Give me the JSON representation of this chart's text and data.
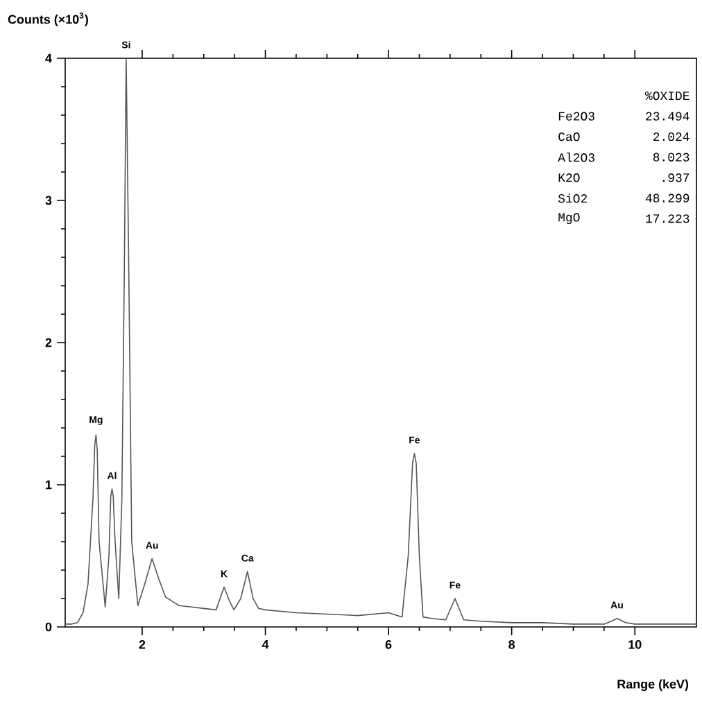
{
  "chart_data": {
    "type": "line",
    "ylabel": "Counts (×10$^{3}$)",
    "xlabel": "Range (keV)",
    "x": [
      0.75,
      0.85,
      0.95,
      1.04,
      1.12,
      1.2,
      1.23,
      1.25,
      1.27,
      1.3,
      1.4,
      1.46,
      1.49,
      1.51,
      1.53,
      1.56,
      1.62,
      1.67,
      1.71,
      1.74,
      1.78,
      1.83,
      1.93,
      2.04,
      2.16,
      2.26,
      2.38,
      2.6,
      2.8,
      3.0,
      3.2,
      3.33,
      3.42,
      3.49,
      3.6,
      3.71,
      3.8,
      3.89,
      4.0,
      4.5,
      5.0,
      5.5,
      6.0,
      6.22,
      6.32,
      6.39,
      6.42,
      6.45,
      6.5,
      6.56,
      6.7,
      6.93,
      7.08,
      7.22,
      7.5,
      8.0,
      8.5,
      9.0,
      9.5,
      9.62,
      9.71,
      9.85,
      10.0,
      10.5,
      11.0
    ],
    "series": [
      {
        "color": "#555555",
        "values": [
          0.02,
          0.02,
          0.03,
          0.1,
          0.3,
          0.9,
          1.28,
          1.35,
          1.25,
          0.6,
          0.14,
          0.5,
          0.92,
          0.97,
          0.92,
          0.6,
          0.2,
          0.9,
          2.5,
          4,
          2.6,
          0.6,
          0.15,
          0.3,
          0.48,
          0.35,
          0.21,
          0.15,
          0.14,
          0.13,
          0.12,
          0.28,
          0.18,
          0.12,
          0.2,
          0.39,
          0.2,
          0.13,
          0.12,
          0.1,
          0.09,
          0.08,
          0.1,
          0.07,
          0.5,
          1.15,
          1.22,
          1.15,
          0.5,
          0.07,
          0.06,
          0.05,
          0.2,
          0.05,
          0.04,
          0.03,
          0.03,
          0.02,
          0.02,
          0.04,
          0.06,
          0.03,
          0.02,
          0.02,
          0.02
        ]
      }
    ],
    "xlim": [
      0.75,
      11
    ],
    "ylim": [
      0,
      4
    ],
    "xticks": [
      2,
      4,
      6,
      8,
      10
    ],
    "yticks": [
      0,
      1,
      2,
      3,
      4
    ],
    "annotations": [
      {
        "text": "Mg",
        "x": 1.25,
        "y": 1.35
      },
      {
        "text": "Al",
        "x": 1.51,
        "y": 0.97
      },
      {
        "text": "Si",
        "x": 1.74,
        "y": 4
      },
      {
        "text": "Au",
        "x": 2.16,
        "y": 0.48
      },
      {
        "text": "K",
        "x": 3.33,
        "y": 0.28
      },
      {
        "text": "Ca",
        "x": 3.71,
        "y": 0.39
      },
      {
        "text": "Fe",
        "x": 6.42,
        "y": 1.22
      },
      {
        "text": "Fe",
        "x": 7.08,
        "y": 0.2
      },
      {
        "text": "Au",
        "x": 9.71,
        "y": 0.06
      },
      "%OXIDE",
      "Fe2O3",
      "23.494",
      "CaO",
      "2.024",
      "Al2O3",
      "8.023",
      "K2O",
      ".937",
      "SiO2",
      "48.299",
      "MgO",
      "17.223"
    ]
  }
}
